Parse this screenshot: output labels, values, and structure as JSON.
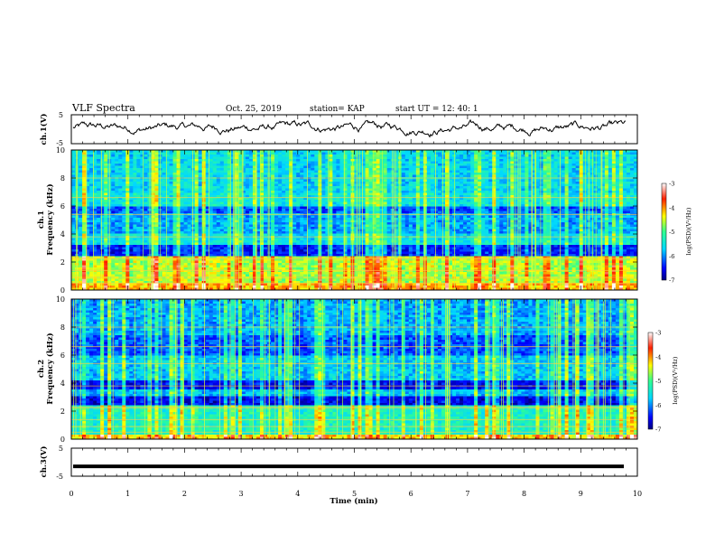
{
  "header": {
    "title": "VLF Spectra",
    "date": "Oct. 25, 2019",
    "station": "station= KAP",
    "start": "start  UT =   12: 40: 1"
  },
  "chart_data": [
    {
      "type": "line",
      "panel": "ch1-waveform",
      "ylabel": "ch.1(V)",
      "ylim": [
        -5,
        5
      ],
      "yticks": [
        -5,
        5
      ],
      "xlim": [
        0,
        10
      ],
      "series": [
        {
          "color": "#000000",
          "mean": 0.5,
          "range": [
            -5,
            5
          ]
        }
      ]
    },
    {
      "type": "heatmap",
      "panel": "ch1-spectrogram",
      "ylabel": "ch.1",
      "ylabel2": "Frequency (kHz)",
      "ylim": [
        0,
        10
      ],
      "yticks": [
        0,
        2,
        4,
        6,
        8,
        10
      ],
      "xlim": [
        0,
        10
      ],
      "colorbar": {
        "label": "log(PSD)(V²/Hz)",
        "range": [
          -7,
          -3
        ],
        "ticks": [
          "-3",
          "-4",
          "-5",
          "-6",
          "-7"
        ]
      }
    },
    {
      "type": "heatmap",
      "panel": "ch2-spectrogram",
      "ylabel": "ch.2",
      "ylabel2": "Frequency (kHz)",
      "ylim": [
        0,
        10
      ],
      "yticks": [
        0,
        2,
        4,
        6,
        8,
        10
      ],
      "xlim": [
        0,
        10
      ],
      "colorbar": {
        "label": "log(PSD)(V²/Hz)",
        "range": [
          -7,
          -3
        ],
        "ticks": [
          "-3",
          "-4",
          "-5",
          "-6",
          "-7"
        ]
      }
    },
    {
      "type": "line",
      "panel": "ch3-waveform",
      "ylabel": "ch.3(V)",
      "ylim": [
        -5,
        5
      ],
      "yticks": [
        -5,
        5
      ],
      "xlim": [
        0,
        10
      ],
      "xlabel": "Time  (min)",
      "xticks": [
        0,
        1,
        2,
        3,
        4,
        5,
        6,
        7,
        8,
        9,
        10
      ],
      "series": [
        {
          "color": "#000000",
          "value": -1.5
        }
      ]
    }
  ]
}
